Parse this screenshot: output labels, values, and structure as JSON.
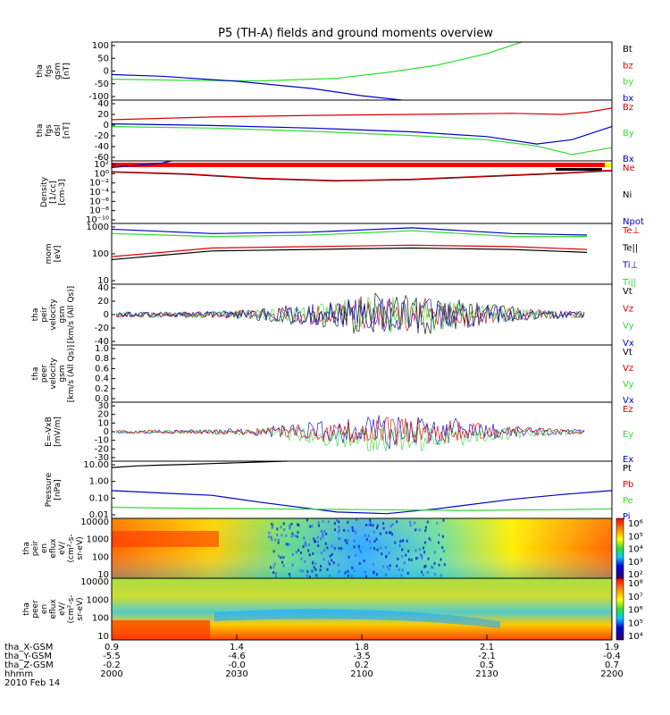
{
  "title": "P5 (TH-A) fields and ground moments overview",
  "colors": {
    "black": "#000000",
    "red": "#dd0000",
    "green": "#33dd33",
    "blue": "#0000cc",
    "yellow": "#ffff00",
    "orange": "#ff8800"
  },
  "chart_data": [
    {
      "type": "line",
      "panel": "fgs",
      "ylabel": [
        "tha",
        "fgs",
        "gsm",
        "[nT]"
      ],
      "ylim": [
        -100,
        100
      ],
      "yticks": [
        "100",
        "50",
        "0",
        "-50",
        "-100"
      ],
      "legend": [
        {
          "label": "Bt",
          "color": "#000000"
        },
        {
          "label": "bz",
          "color": "#dd0000"
        },
        {
          "label": "by",
          "color": "#33dd33"
        },
        {
          "label": "bx",
          "color": "#0000cc"
        }
      ],
      "series": [
        {
          "color": "#33dd33",
          "x": [
            0,
            0.15,
            0.3,
            0.45,
            0.55,
            0.65,
            0.75,
            0.82
          ],
          "y": [
            -28,
            -32,
            -34,
            -25,
            -5,
            20,
            60,
            100
          ]
        },
        {
          "color": "#0000cc",
          "x": [
            0,
            0.1,
            0.25,
            0.4,
            0.5,
            0.58
          ],
          "y": [
            -12,
            -18,
            -35,
            -60,
            -85,
            -100
          ]
        }
      ]
    },
    {
      "type": "line",
      "panel": "fgs_dsl",
      "ylabel": [
        "tha",
        "fgs",
        "dsl",
        "[nT]"
      ],
      "ylim": [
        -70,
        45
      ],
      "yticks": [
        "40",
        "20",
        "0",
        "-20",
        "-40",
        "-60"
      ],
      "legend": [
        {
          "label": "Bz",
          "color": "#dd0000"
        },
        {
          "label": "By",
          "color": "#33dd33"
        },
        {
          "label": "Bx",
          "color": "#0000cc"
        }
      ],
      "series": [
        {
          "color": "#dd0000",
          "x": [
            0,
            0.2,
            0.4,
            0.6,
            0.8,
            0.9,
            0.95,
            1
          ],
          "y": [
            8,
            13,
            16,
            18,
            20,
            18,
            22,
            30
          ]
        },
        {
          "color": "#33dd33",
          "x": [
            0,
            0.2,
            0.4,
            0.6,
            0.75,
            0.85,
            0.92,
            1
          ],
          "y": [
            -5,
            -8,
            -14,
            -22,
            -30,
            -42,
            -58,
            -45
          ]
        },
        {
          "color": "#0000cc",
          "x": [
            0,
            0.2,
            0.4,
            0.6,
            0.75,
            0.85,
            0.92,
            1
          ],
          "y": [
            0,
            -3,
            -8,
            -15,
            -24,
            -38,
            -30,
            -5
          ]
        }
      ]
    },
    {
      "type": "line",
      "panel": "density",
      "ylabel": [
        "Density",
        "[1/cc]",
        "[cm-3]"
      ],
      "ylog": true,
      "ylim": [
        -11,
        3
      ],
      "yticks": [
        "10²",
        "10⁰",
        "10⁻²",
        "10⁻⁴",
        "10⁻⁶",
        "10⁻⁸",
        "10⁻¹⁰"
      ],
      "legend": [
        {
          "label": "Ne",
          "color": "#dd0000"
        },
        {
          "label": "Ni",
          "color": "#000000"
        },
        {
          "label": "Npot",
          "color": "#0000cc"
        }
      ],
      "series": [
        {
          "color": "#000000",
          "x": [
            0,
            0.15,
            0.3,
            0.45,
            0.6,
            0.75,
            0.9,
            1
          ],
          "y": [
            0.5,
            0,
            -1,
            -1.5,
            -1.2,
            -0.5,
            0.2,
            0.8
          ]
        },
        {
          "color": "#dd0000",
          "x": [
            0,
            0.15,
            0.3,
            0.45,
            0.6,
            0.75,
            0.9,
            1
          ],
          "y": [
            0.6,
            0.1,
            -0.9,
            -1.4,
            -1.1,
            -0.4,
            0.3,
            0.9
          ]
        },
        {
          "color": "#0000cc",
          "x": [
            0,
            0.05,
            0.1,
            0.12
          ],
          "y": [
            1.5,
            2,
            2.5,
            3
          ]
        }
      ]
    },
    {
      "type": "line",
      "panel": "temperature",
      "ylabel": [
        "mom",
        "[eV]"
      ],
      "ylog": true,
      "ylim": [
        1,
        3.1
      ],
      "yticks": [
        "1000",
        "100",
        "10"
      ],
      "legend": [
        {
          "label": "Te⊥",
          "color": "#dd0000"
        },
        {
          "label": "Te||",
          "color": "#000000"
        },
        {
          "label": "Ti⊥",
          "color": "#0000cc"
        },
        {
          "label": "Ti||",
          "color": "#33dd33"
        }
      ],
      "series": [
        {
          "color": "#0000cc",
          "x": [
            0,
            0.2,
            0.4,
            0.6,
            0.8,
            0.95
          ],
          "y": [
            2.9,
            2.75,
            2.8,
            2.95,
            2.75,
            2.7
          ]
        },
        {
          "color": "#33dd33",
          "x": [
            0,
            0.2,
            0.4,
            0.6,
            0.8,
            0.95
          ],
          "y": [
            2.75,
            2.65,
            2.7,
            2.85,
            2.65,
            2.65
          ]
        },
        {
          "color": "#dd0000",
          "x": [
            0,
            0.1,
            0.2,
            0.4,
            0.6,
            0.8,
            0.95
          ],
          "y": [
            1.95,
            2.1,
            2.25,
            2.3,
            2.35,
            2.3,
            2.2
          ]
        },
        {
          "color": "#000000",
          "x": [
            0,
            0.1,
            0.2,
            0.4,
            0.6,
            0.8,
            0.95
          ],
          "y": [
            1.85,
            2.0,
            2.15,
            2.2,
            2.25,
            2.2,
            2.1
          ]
        }
      ]
    },
    {
      "type": "line",
      "panel": "peir_velocity",
      "ylabel": [
        "tha",
        "peir",
        "velocity",
        "gsm",
        "[km/s (All Qs)]"
      ],
      "ylim": [
        -40,
        40
      ],
      "yticks": [
        "40",
        "20",
        "0",
        "-20",
        "-40"
      ],
      "legend": [
        {
          "label": "Vt",
          "color": "#000000"
        },
        {
          "label": "Vz",
          "color": "#dd0000"
        },
        {
          "label": "Vy",
          "color": "#33dd33"
        },
        {
          "label": "Vx",
          "color": "#0000cc"
        }
      ],
      "series": []
    },
    {
      "type": "line",
      "panel": "peer_velocity",
      "ylabel": [
        "tha",
        "peer",
        "velocity",
        "gsm",
        "[km/s (All Qs)]"
      ],
      "ylim": [
        0,
        1
      ],
      "yticks": [
        "1.0",
        "0.8",
        "0.6",
        "0.4",
        "0.2",
        "0.0"
      ],
      "legend": [
        {
          "label": "Vt",
          "color": "#000000"
        },
        {
          "label": "Vz",
          "color": "#dd0000"
        },
        {
          "label": "Vy",
          "color": "#33dd33"
        },
        {
          "label": "Vx",
          "color": "#0000cc"
        }
      ],
      "series": []
    },
    {
      "type": "line",
      "panel": "efield",
      "ylabel": [
        "E=-VxB",
        "[mV/m]"
      ],
      "ylim": [
        -30,
        30
      ],
      "yticks": [
        "30",
        "20",
        "10",
        "0",
        "-10",
        "-20",
        "-30"
      ],
      "legend": [
        {
          "label": "Ez",
          "color": "#dd0000"
        },
        {
          "label": "Ey",
          "color": "#33dd33"
        },
        {
          "label": "Ex",
          "color": "#0000cc"
        }
      ],
      "series": []
    },
    {
      "type": "line",
      "panel": "pressure",
      "ylabel": [
        "Pressure",
        "[nPa]"
      ],
      "ylog": true,
      "ylim": [
        -2.3,
        1.3
      ],
      "yticks": [
        "10.00",
        "1.00",
        "0.10",
        "0.01"
      ],
      "legend": [
        {
          "label": "Pt",
          "color": "#000000"
        },
        {
          "label": "Pb",
          "color": "#dd0000"
        },
        {
          "label": "Pe",
          "color": "#33dd33"
        },
        {
          "label": "Pi",
          "color": "#0000cc"
        }
      ],
      "series": [
        {
          "color": "#000000",
          "x": [
            0,
            0.05,
            0.1,
            0.15,
            0.2,
            0.25,
            0.3,
            0.35
          ],
          "y": [
            0.9,
            1.0,
            1.05,
            1.1,
            1.15,
            1.2,
            1.25,
            1.3
          ]
        },
        {
          "color": "#0000cc",
          "x": [
            0,
            0.1,
            0.2,
            0.3,
            0.45,
            0.55,
            0.65,
            0.8,
            0.9,
            1
          ],
          "y": [
            -0.55,
            -0.7,
            -0.85,
            -1.3,
            -1.9,
            -2.0,
            -1.7,
            -1.1,
            -0.8,
            -0.55
          ]
        },
        {
          "color": "#33dd33",
          "x": [
            0,
            0.1,
            0.3,
            0.5,
            0.7,
            0.9,
            1
          ],
          "y": [
            -1.6,
            -1.65,
            -1.7,
            -1.75,
            -1.8,
            -1.75,
            -1.7
          ]
        }
      ]
    },
    {
      "type": "heatmap",
      "panel": "peir_eflux",
      "ylabel": [
        "tha",
        "peir",
        "en",
        "eflux",
        "eV/",
        "(cm²-s-",
        "sr-eV)"
      ],
      "yticks": [
        "10000",
        "1000",
        "100",
        "10"
      ],
      "colorbar_ticks": [
        "10⁶",
        "10⁵",
        "10⁴",
        "10³",
        "10²"
      ]
    },
    {
      "type": "heatmap",
      "panel": "peer_eflux",
      "ylabel": [
        "tha",
        "peer",
        "en",
        "eflux",
        "eV/",
        "(cm²-s-",
        "sr-eV)"
      ],
      "yticks": [
        "10000",
        "1000",
        "100",
        "10"
      ],
      "colorbar_ticks": [
        "10⁸",
        "10⁷",
        "10⁶",
        "10⁵",
        "10⁴"
      ]
    }
  ],
  "xaxis": {
    "rows": [
      {
        "label": "tha_X-GSM",
        "values": [
          "0.9",
          "1.4",
          "1.8",
          "2.1",
          "1.9"
        ]
      },
      {
        "label": "tha_Y-GSM",
        "values": [
          "-5.5",
          "-4.6",
          "-3.5",
          "-2.1",
          "-0.4"
        ]
      },
      {
        "label": "tha_Z-GSM",
        "values": [
          "-0.2",
          "-0.0",
          "0.2",
          "0.5",
          "0.7"
        ]
      },
      {
        "label": "hhmm",
        "values": [
          "2000",
          "2030",
          "2100",
          "2130",
          "2200"
        ]
      }
    ],
    "date": "2010 Feb 14"
  }
}
